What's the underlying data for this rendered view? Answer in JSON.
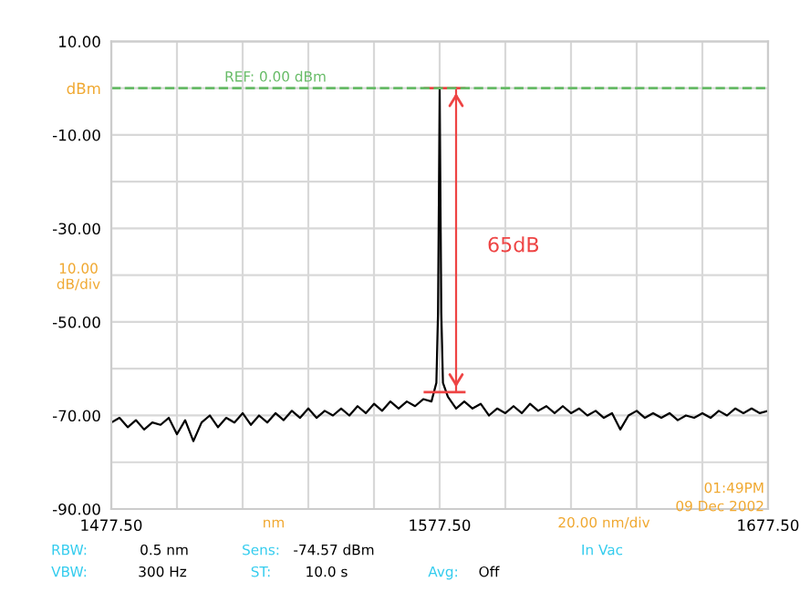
{
  "chart_data": {
    "type": "line",
    "x": [
      1477.5,
      1480,
      1482.5,
      1485,
      1487.5,
      1490,
      1492.5,
      1495,
      1497.5,
      1500,
      1502.5,
      1505,
      1507.5,
      1510,
      1512.5,
      1515,
      1517.5,
      1520,
      1522.5,
      1525,
      1527.5,
      1530,
      1532.5,
      1535,
      1537.5,
      1540,
      1542.5,
      1545,
      1547.5,
      1550,
      1552.5,
      1555,
      1557.5,
      1560,
      1562.5,
      1565,
      1567.5,
      1570,
      1572.5,
      1575,
      1576.5,
      1577,
      1577.3,
      1577.5,
      1577.7,
      1578,
      1578.5,
      1580,
      1582.5,
      1585,
      1587.5,
      1590,
      1592.5,
      1595,
      1597.5,
      1600,
      1602.5,
      1605,
      1607.5,
      1610,
      1612.5,
      1615,
      1617.5,
      1620,
      1622.5,
      1625,
      1627.5,
      1630,
      1632.5,
      1635,
      1637.5,
      1640,
      1642.5,
      1645,
      1647.5,
      1650,
      1652.5,
      1655,
      1657.5,
      1660,
      1662.5,
      1665,
      1667.5,
      1670,
      1672.5,
      1675,
      1677.5
    ],
    "series": [
      {
        "color": "#000000",
        "values": [
          -71.5,
          -70.5,
          -72.5,
          -71,
          -73,
          -71.5,
          -72,
          -70.5,
          -74,
          -71,
          -75.5,
          -71.5,
          -70,
          -72.5,
          -70.5,
          -71.5,
          -69.5,
          -72,
          -70,
          -71.5,
          -69.5,
          -71,
          -69,
          -70.5,
          -68.5,
          -70.5,
          -69,
          -70,
          -68.5,
          -70,
          -68,
          -69.5,
          -67.5,
          -69,
          -67,
          -68.5,
          -67,
          -68,
          -66.5,
          -67,
          -63,
          -48,
          -20,
          0,
          -20,
          -48,
          -63,
          -66,
          -68.5,
          -67,
          -68.5,
          -67.5,
          -70,
          -68.5,
          -69.5,
          -68,
          -69.5,
          -67.5,
          -69,
          -68,
          -69.5,
          -68,
          -69.5,
          -68.5,
          -70,
          -69,
          -70.5,
          -69.5,
          -73,
          -70,
          -69,
          -70.5,
          -69.5,
          -70.5,
          -69.5,
          -71,
          -70,
          -70.5,
          -69.5,
          -70.5,
          -69,
          -70,
          -68.5,
          -69.5,
          -68.5,
          -69.5,
          -69
        ]
      },
      {
        "color": "#ee4444",
        "x": [
          1582.5,
          1582.5
        ],
        "values": [
          0,
          -65
        ]
      }
    ],
    "xlim": [
      1477.5,
      1677.5
    ],
    "ylim": [
      -90,
      10
    ],
    "xticks": [
      {
        "value": 1477.5,
        "label": "1477.50"
      },
      {
        "value": 1497.5,
        "label": null
      },
      {
        "value": 1517.5,
        "label": null
      },
      {
        "value": 1537.5,
        "label": null
      },
      {
        "value": 1557.5,
        "label": null
      },
      {
        "value": 1577.5,
        "label": "1577.50"
      },
      {
        "value": 1597.5,
        "label": null
      },
      {
        "value": 1617.5,
        "label": null
      },
      {
        "value": 1637.5,
        "label": null
      },
      {
        "value": 1657.5,
        "label": null
      },
      {
        "value": 1677.5,
        "label": "1677.50"
      }
    ],
    "yticks": [
      {
        "value": 10,
        "label": "10.00"
      },
      {
        "value": 0,
        "label": "dBm"
      },
      {
        "value": -10,
        "label": "-10.00"
      },
      {
        "value": -20,
        "label": null
      },
      {
        "value": -30,
        "label": "-30.00"
      },
      {
        "value": -40,
        "label": null
      },
      {
        "value": -50,
        "label": "-50.00"
      },
      {
        "value": -60,
        "label": null
      },
      {
        "value": -70,
        "label": "-70.00"
      },
      {
        "value": -80,
        "label": null
      },
      {
        "value": -90,
        "label": "-90.00"
      }
    ],
    "grid": true,
    "marker": "none",
    "line_style": "solid",
    "ref_lines": [
      {
        "axis": "y",
        "value": 0,
        "label": "REF: 0.00 dBm",
        "color": "#66bb66",
        "line_style": "dashed"
      }
    ],
    "annotations": [
      "65dB",
      "10.00\ndB/div",
      "RBW:",
      "0.5 nm",
      "Sens:",
      "-74.57 dBm",
      "In Vac",
      "VBW:",
      "300 Hz",
      "ST:",
      "10.0 s",
      "Avg:",
      "Off",
      "nm",
      "20.00 nm/div",
      "01:49PM",
      "09 Dec 2002"
    ]
  }
}
